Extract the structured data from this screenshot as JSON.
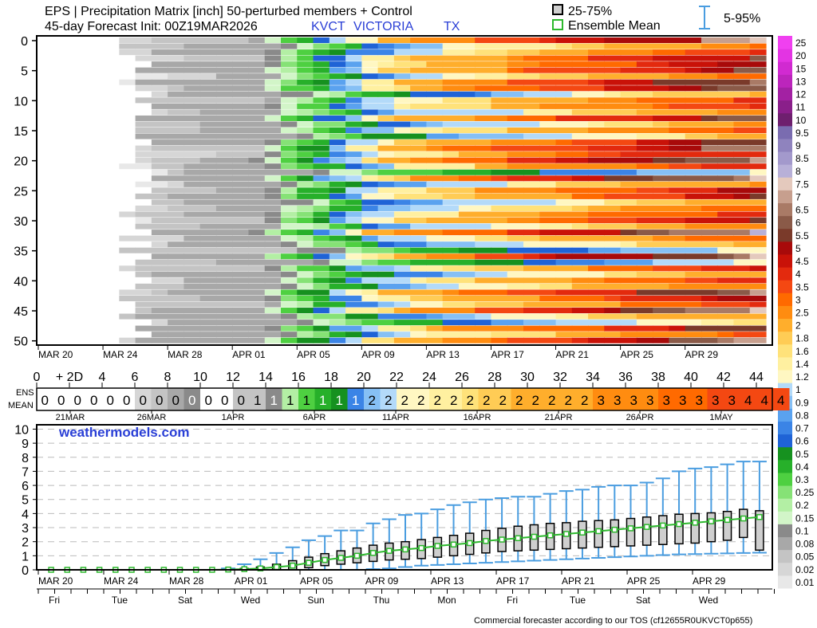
{
  "header": {
    "title": "EPS | Precipitation Matrix [inch]  50-perturbed members + Control",
    "init": "45-day Forecast Init: 00Z19MAR2026",
    "station": "KVCT",
    "city": "VICTORIA",
    "state": "TX",
    "box_label": "25-75%",
    "mean_label": "Ensemble Mean",
    "whisker_label": "5-95%"
  },
  "colors": {
    "box_border": "#000000",
    "mean_line": "#2db82d",
    "whisker": "#4a9de0",
    "station_text": "#2a3fd6",
    "watermark": "#2a3fd6"
  },
  "footer": {
    "watermark": "weathermodels.com",
    "tos": "Commercial forecaster according to our TOS (cf12655R0UKVCT0p655)"
  },
  "chart_data": [
    {
      "type": "heatmap",
      "name": "member matrix",
      "x_ticks": [
        "MAR 20",
        "MAR 24",
        "MAR 28",
        "APR 01",
        "APR 05",
        "APR 09",
        "APR 13",
        "APR 17",
        "APR 21",
        "APR 25",
        "APR 29"
      ],
      "y_ticks": [
        "0",
        "5",
        "10",
        "15",
        "20",
        "25",
        "30",
        "35",
        "40",
        "45",
        "50"
      ],
      "members": 51,
      "days": 45,
      "seed": 7,
      "ensemble_mean_by_day": [
        0,
        0,
        0,
        0,
        0,
        0,
        0,
        0,
        0,
        0,
        0,
        0,
        0.02,
        0.05,
        0.1,
        0.2,
        0.3,
        0.4,
        0.55,
        0.75,
        0.95,
        1.1,
        1.25,
        1.35,
        1.45,
        1.55,
        1.65,
        1.8,
        1.9,
        2.0,
        2.1,
        2.2,
        2.35,
        2.45,
        2.6,
        2.7,
        2.85,
        2.95,
        3.1,
        3.2,
        3.35,
        3.5,
        3.6,
        3.75,
        3.9
      ],
      "legend": {
        "levels": [
          "0.01",
          "0.02",
          "0.05",
          "0.08",
          "0.1",
          "0.15",
          "0.2",
          "0.25",
          "0.3",
          "0.4",
          "0.5",
          "0.6",
          "0.7",
          "0.8",
          "0.9",
          "1",
          "1.2",
          "1.4",
          "1.6",
          "1.8",
          "2",
          "2.5",
          "3",
          "3.5",
          "4",
          "4.5",
          "5",
          "5.5",
          "6",
          "6.5",
          "7",
          "7.5",
          "8",
          "8.5",
          "9",
          "9.5",
          "10",
          "11",
          "12",
          "13",
          "15",
          "20",
          "25"
        ],
        "colors": [
          "#e8e8e8",
          "#d6d6d6",
          "#c4c4c4",
          "#a8a8a8",
          "#8a8a8a",
          "#d2f5c8",
          "#b3efa4",
          "#86e276",
          "#4ed041",
          "#27b02a",
          "#16911f",
          "#1f63d6",
          "#3b84e6",
          "#5aa2ef",
          "#86c0f5",
          "#b3daf9",
          "#fff7c2",
          "#fff0a0",
          "#ffe27a",
          "#ffcc55",
          "#ffae2c",
          "#ff8c10",
          "#ff6a00",
          "#f44812",
          "#e32a0e",
          "#c91208",
          "#a80a0a",
          "#7a3a2a",
          "#8a5a48",
          "#a97a66",
          "#c79f8e",
          "#e4c9bd",
          "#b8b0d8",
          "#a399cc",
          "#8f83be",
          "#7a6cb0",
          "#6e1f6e",
          "#8a1f8a",
          "#a321a3",
          "#bc25bc",
          "#d12ad1",
          "#e334e3",
          "#f040f0"
        ]
      }
    },
    {
      "type": "table",
      "name": "forecast hours and ensemble mean strip",
      "hour_ticks": [
        "0",
        "+ 2D",
        "4",
        "6",
        "8",
        "10",
        "12",
        "14",
        "16",
        "18",
        "20",
        "22",
        "24",
        "26",
        "28",
        "30",
        "32",
        "34",
        "36",
        "38",
        "40",
        "42",
        "44"
      ],
      "row_labels": [
        "ENS",
        "MEAN"
      ],
      "values": [
        "0",
        "0",
        "0",
        "0",
        "0",
        "0",
        "0",
        "0",
        "0",
        "0",
        "0",
        "0",
        "0",
        "1",
        "1",
        "1",
        "1",
        "1",
        "1",
        "1",
        "2",
        "2",
        "2",
        "2",
        "2",
        "2",
        "2",
        "2",
        "2",
        "2",
        "2",
        "2",
        "2",
        "2",
        "3",
        "3",
        "3",
        "3",
        "3",
        "3",
        "3",
        "3",
        "3",
        "4",
        "4",
        "4"
      ],
      "date_labels": [
        "21MAR",
        "26MAR",
        "1APR",
        "6APR",
        "11APR",
        "16APR",
        "21APR",
        "26APR",
        "1MAY"
      ]
    },
    {
      "type": "box",
      "name": "accumulated precipitation distribution",
      "ylim": [
        0,
        10
      ],
      "y_ticks": [
        "0",
        "1",
        "2",
        "3",
        "4",
        "5",
        "6",
        "7",
        "8",
        "9",
        "10"
      ],
      "x_ticks": [
        "MAR 20",
        "MAR 24",
        "MAR 28",
        "APR 01",
        "APR 05",
        "APR 09",
        "APR 13",
        "APR 17",
        "APR 21",
        "APR 25",
        "APR 29"
      ],
      "weekday_ticks": [
        "Fri",
        "Tue",
        "Sat",
        "Wed",
        "Sun",
        "Thu",
        "Mon",
        "Fri",
        "Tue",
        "Sat",
        "Wed"
      ],
      "mean": [
        0,
        0,
        0,
        0,
        0,
        0,
        0,
        0,
        0,
        0,
        0,
        0.02,
        0.05,
        0.1,
        0.2,
        0.3,
        0.5,
        0.7,
        0.85,
        1.0,
        1.2,
        1.35,
        1.45,
        1.55,
        1.7,
        1.8,
        1.9,
        2.05,
        2.15,
        2.25,
        2.35,
        2.45,
        2.55,
        2.65,
        2.75,
        2.85,
        2.95,
        3.05,
        3.15,
        3.25,
        3.35,
        3.45,
        3.55,
        3.65,
        3.75
      ],
      "p25": [
        0,
        0,
        0,
        0,
        0,
        0,
        0,
        0,
        0,
        0,
        0,
        0,
        0,
        0,
        0,
        0,
        0.15,
        0.3,
        0.4,
        0.5,
        0.6,
        0.7,
        0.75,
        0.8,
        0.9,
        1.0,
        1.1,
        1.2,
        1.3,
        1.35,
        1.4,
        1.45,
        1.5,
        1.55,
        1.6,
        1.65,
        1.7,
        1.75,
        1.8,
        1.85,
        1.9,
        2.0,
        2.1,
        2.3,
        1.4
      ],
      "p75": [
        0,
        0,
        0,
        0,
        0,
        0,
        0,
        0,
        0,
        0,
        0,
        0,
        0.1,
        0.2,
        0.4,
        0.65,
        0.9,
        1.15,
        1.35,
        1.55,
        1.75,
        1.9,
        2.0,
        2.15,
        2.3,
        2.45,
        2.6,
        2.8,
        2.95,
        3.1,
        3.2,
        3.3,
        3.35,
        3.45,
        3.5,
        3.55,
        3.65,
        3.75,
        3.85,
        3.95,
        4.0,
        4.05,
        4.15,
        4.3,
        4.2
      ],
      "p05": [
        0,
        0,
        0,
        0,
        0,
        0,
        0,
        0,
        0,
        0,
        0,
        0,
        0,
        0,
        0,
        0,
        0,
        0,
        0,
        0,
        0.05,
        0.1,
        0.2,
        0.3,
        0.35,
        0.4,
        0.45,
        0.5,
        0.55,
        0.6,
        0.65,
        0.7,
        0.75,
        0.8,
        0.85,
        0.9,
        0.95,
        1.0,
        1.05,
        1.1,
        1.12,
        1.15,
        1.17,
        1.2,
        1.22
      ],
      "p95": [
        0,
        0,
        0,
        0,
        0,
        0,
        0,
        0,
        0,
        0,
        0,
        0.1,
        0.4,
        0.75,
        1.2,
        1.6,
        2.1,
        2.4,
        2.8,
        2.8,
        3.3,
        3.6,
        3.9,
        4.0,
        4.3,
        4.6,
        4.8,
        5.0,
        5.1,
        5.2,
        5.2,
        5.4,
        5.6,
        5.7,
        5.9,
        6.0,
        6.0,
        6.2,
        6.5,
        7.0,
        7.2,
        7.3,
        7.5,
        7.7,
        7.7
      ]
    }
  ]
}
